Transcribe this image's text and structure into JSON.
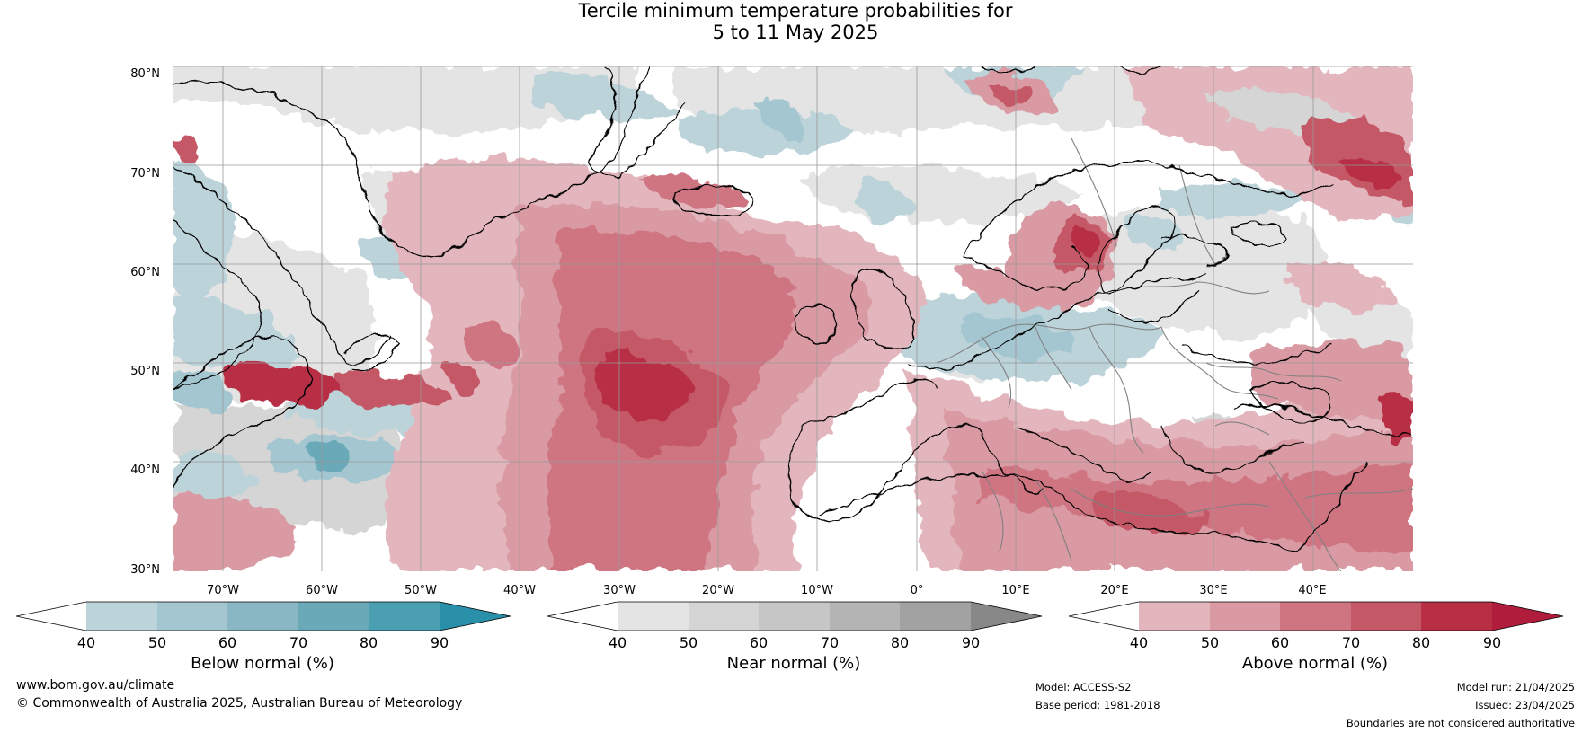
{
  "title": {
    "line1": "Tercile minimum temperature probabilities for",
    "line2": "5 to 11 May 2025"
  },
  "axes": {
    "lat_labels": [
      "80°N",
      "70°N",
      "60°N",
      "50°N",
      "40°N",
      "30°N"
    ],
    "lon_labels": [
      "70°W",
      "60°W",
      "50°W",
      "40°W",
      "30°W",
      "20°W",
      "10°W",
      "0°",
      "10°E",
      "20°E",
      "30°E",
      "40°E"
    ]
  },
  "map": {
    "type": "filled-contour-probability-map",
    "region": "North Atlantic and Europe",
    "lat_range": [
      30,
      80
    ],
    "lon_range": [
      -77,
      48
    ],
    "gridlines": true,
    "coastlines": true,
    "country_boundaries": true
  },
  "colorbars": [
    {
      "label": "Below normal (%)",
      "ticks": [
        "40",
        "50",
        "60",
        "70",
        "80",
        "90"
      ],
      "colors": [
        "#ffffff",
        "#bcd3da",
        "#a3c6d0",
        "#89b8c4",
        "#6aa9b8",
        "#4a9fb3",
        "#2a8fa8"
      ]
    },
    {
      "label": "Near normal (%)",
      "ticks": [
        "40",
        "50",
        "60",
        "70",
        "80",
        "90"
      ],
      "colors": [
        "#ffffff",
        "#e4e4e4",
        "#d5d5d5",
        "#c6c6c6",
        "#b4b4b4",
        "#a2a2a2",
        "#888888"
      ]
    },
    {
      "label": "Above normal (%)",
      "ticks": [
        "40",
        "50",
        "60",
        "70",
        "80",
        "90"
      ],
      "colors": [
        "#ffffff",
        "#e3b5bc",
        "#d99aa3",
        "#cf7582",
        "#c45866",
        "#b72e45",
        "#b01d3c"
      ]
    }
  ],
  "footer": {
    "url": "www.bom.gov.au/climate",
    "copyright": "© Commonwealth of Australia 2025, Australian Bureau of Meteorology",
    "model": "Model: ACCESS-S2",
    "base_period": "Base period: 1981-2018",
    "model_run": "Model run: 21/04/2025",
    "issued": "Issued: 23/04/2025",
    "disclaimer": "Boundaries are not considered authoritative"
  }
}
